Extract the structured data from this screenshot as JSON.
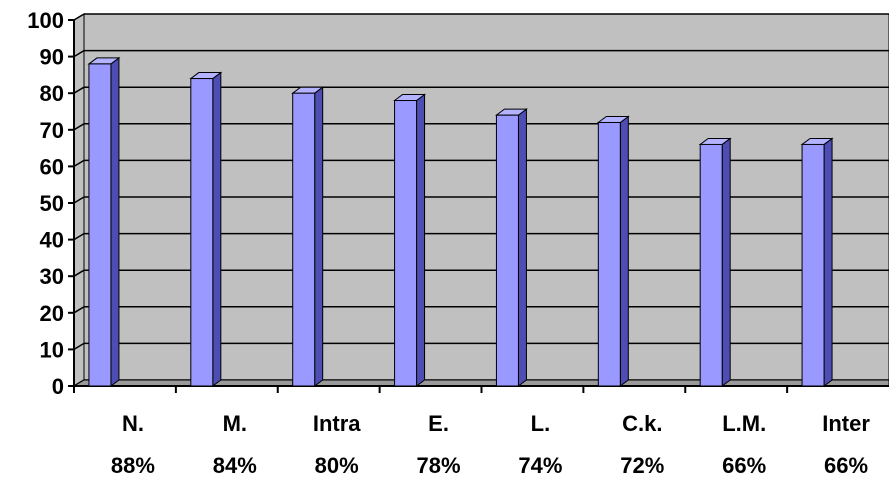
{
  "chart_data": {
    "type": "bar",
    "style": "3d-column",
    "categories": [
      "N.",
      "M.",
      "Intra",
      "E.",
      "L.",
      "C.k.",
      "L.M.",
      "Inter"
    ],
    "category_values_text": [
      "88%",
      "84%",
      "80%",
      "78%",
      "74%",
      "72%",
      "66%",
      "66%"
    ],
    "values": [
      88,
      84,
      80,
      78,
      74,
      72,
      66,
      66
    ],
    "y_ticks": [
      "0",
      "10",
      "20",
      "30",
      "40",
      "50",
      "60",
      "70",
      "80",
      "90",
      "100"
    ],
    "ylim": [
      0,
      100
    ],
    "grid": true,
    "legend": "none",
    "colors": {
      "bar_front": "#9999ff",
      "bar_side": "#4d4db3",
      "bar_top": "#b3b3ff",
      "plot_wall": "#c0c0c0",
      "plot_floor": "#9a9a9a",
      "grid": "#000000"
    }
  }
}
